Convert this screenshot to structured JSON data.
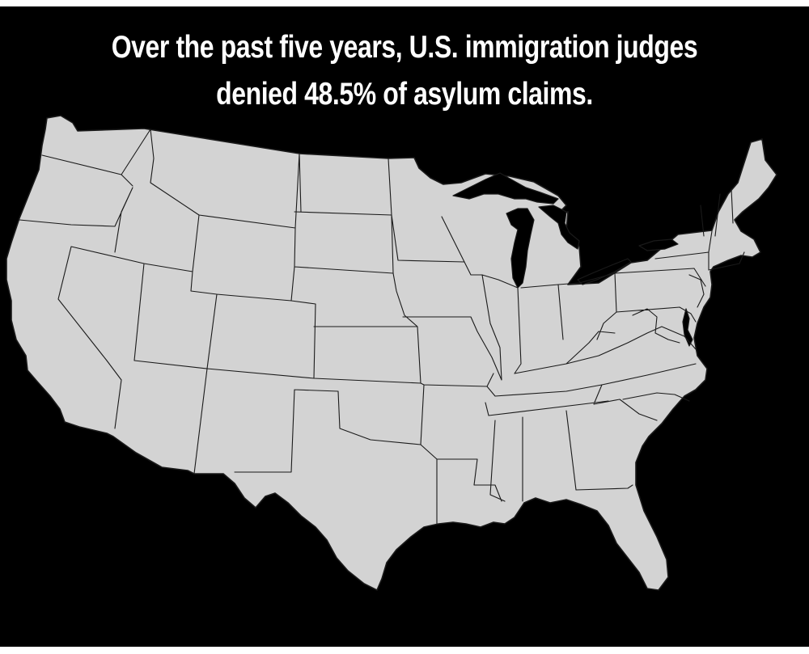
{
  "headline": {
    "line1": "Over the past five years, U.S. immigration judges",
    "line2": "denied 48.5% of asylum claims."
  },
  "colors": {
    "background": "#000000",
    "land": "#d3d3d3",
    "border": "#1a1a1a",
    "text": "#ffffff"
  },
  "map": {
    "region": "contiguous-united-states"
  }
}
